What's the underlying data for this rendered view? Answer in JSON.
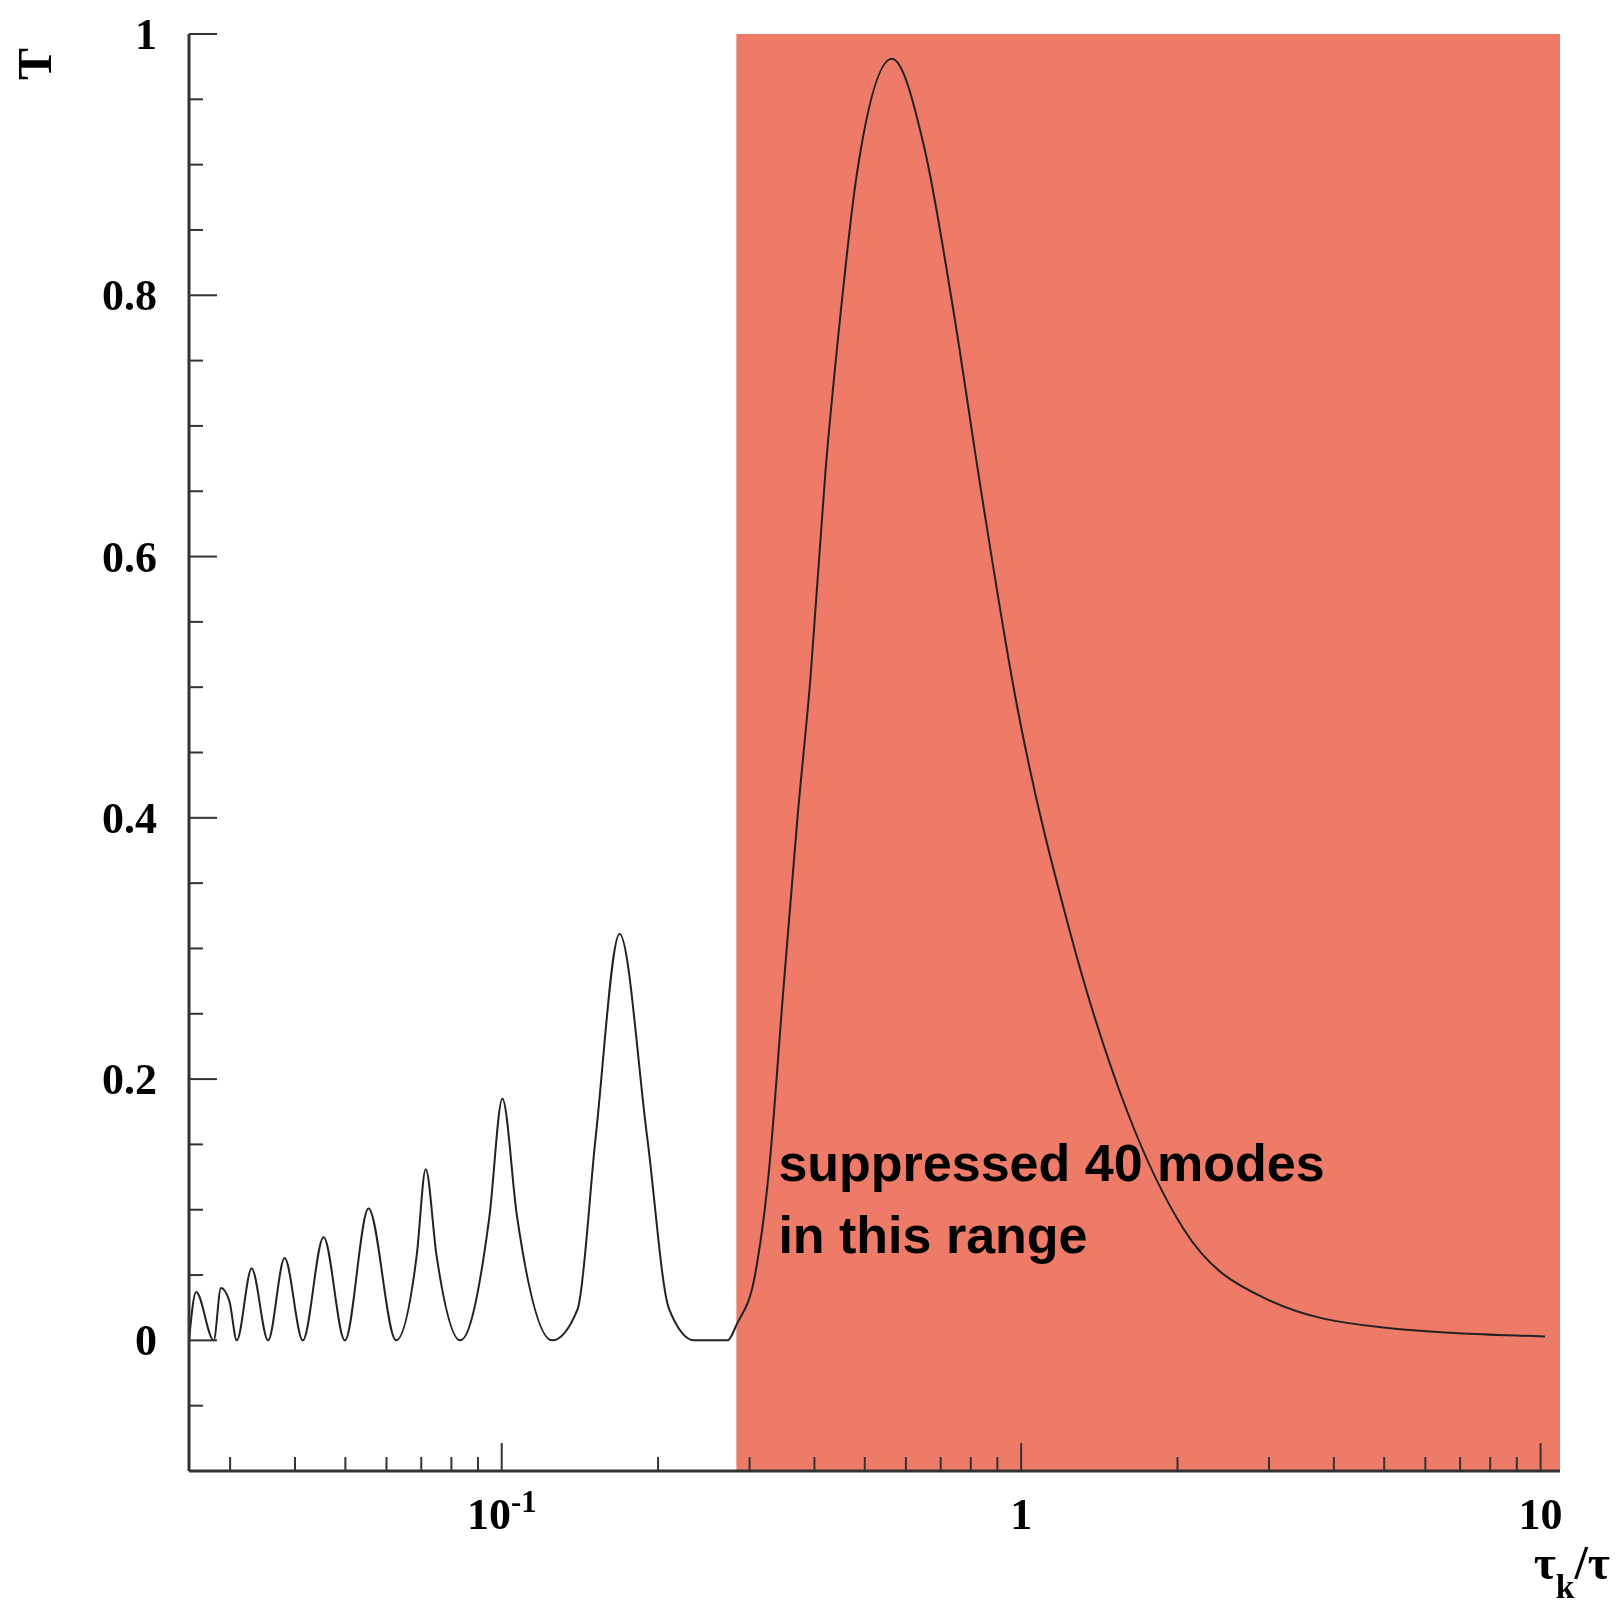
{
  "chart_data": {
    "type": "line",
    "ylabel": "T",
    "xlabel": "τ$_{k}$/τ",
    "log": "x",
    "marker": "none",
    "line_style": "solid",
    "color": "#222222",
    "x": [
      0.025,
      0.0258,
      0.0279,
      0.0288,
      0.0299,
      0.0309,
      0.033,
      0.0355,
      0.0382,
      0.0414,
      0.0454,
      0.0499,
      0.0554,
      0.0626,
      0.0686,
      0.0714,
      0.0749,
      0.0832,
      0.0947,
      0.1003,
      0.107,
      0.125,
      0.14,
      0.1517,
      0.1686,
      0.1905,
      0.21,
      0.235,
      0.272,
      0.284,
      0.307,
      0.327,
      0.348,
      0.371,
      0.393,
      0.42,
      0.447,
      0.482,
      0.564,
      0.651,
      0.738,
      0.836,
      0.973,
      1.247,
      1.601,
      2.056,
      2.99,
      4.93,
      10.2
    ],
    "values": [
      0,
      0.037,
      0,
      0.04,
      0.03,
      0,
      0.055,
      0,
      0.063,
      0,
      0.079,
      0,
      0.101,
      0,
      0.065,
      0.131,
      0.065,
      0,
      0.095,
      0.185,
      0.095,
      0,
      0.024,
      0.156,
      0.311,
      0.156,
      0.024,
      0,
      0,
      0.013,
      0.049,
      0.13,
      0.265,
      0.4,
      0.507,
      0.665,
      0.778,
      0.891,
      0.981,
      0.913,
      0.792,
      0.652,
      0.494,
      0.31,
      0.175,
      0.085,
      0.031,
      0.01,
      0.003
    ],
    "xlim": [
      0.025,
      10.9
    ],
    "ylim": [
      -0.1,
      1
    ],
    "xticks": [
      {
        "value": 0.03,
        "label": null
      },
      {
        "value": 0.04,
        "label": null
      },
      {
        "value": 0.05,
        "label": null
      },
      {
        "value": 0.06,
        "label": null
      },
      {
        "value": 0.07,
        "label": null
      },
      {
        "value": 0.08,
        "label": null
      },
      {
        "value": 0.09,
        "label": null
      },
      {
        "value": 0.1,
        "label": "10$^{-1}$"
      },
      {
        "value": 0.2,
        "label": null
      },
      {
        "value": 0.3,
        "label": null
      },
      {
        "value": 0.4,
        "label": null
      },
      {
        "value": 0.5,
        "label": null
      },
      {
        "value": 0.6,
        "label": null
      },
      {
        "value": 0.7,
        "label": null
      },
      {
        "value": 0.8,
        "label": null
      },
      {
        "value": 0.9,
        "label": null
      },
      1,
      {
        "value": 2,
        "label": null
      },
      {
        "value": 3,
        "label": null
      },
      {
        "value": 4,
        "label": null
      },
      {
        "value": 5,
        "label": null
      },
      {
        "value": 6,
        "label": null
      },
      {
        "value": 7,
        "label": null
      },
      {
        "value": 8,
        "label": null
      },
      {
        "value": 9,
        "label": null
      },
      10
    ],
    "yticks": [
      {
        "value": -0.05,
        "label": null
      },
      0,
      {
        "value": 0.05,
        "label": null
      },
      {
        "value": 0.1,
        "label": null
      },
      {
        "value": 0.15,
        "label": null
      },
      0.2,
      {
        "value": 0.25,
        "label": null
      },
      {
        "value": 0.3,
        "label": null
      },
      {
        "value": 0.35,
        "label": null
      },
      0.4,
      {
        "value": 0.45,
        "label": null
      },
      {
        "value": 0.5,
        "label": null
      },
      {
        "value": 0.55,
        "label": null
      },
      0.6,
      {
        "value": 0.65,
        "label": null
      },
      {
        "value": 0.7,
        "label": null
      },
      {
        "value": 0.75,
        "label": null
      },
      0.8,
      {
        "value": 0.85,
        "label": null
      },
      {
        "value": 0.9,
        "label": null
      },
      {
        "value": 0.95,
        "label": null
      },
      1
    ],
    "bands": [
      {
        "axis": "x",
        "from": 0.283,
        "to": 10.9,
        "color": "#ee7b68",
        "label": "suppressed 40 modes\nin this range"
      }
    ]
  }
}
